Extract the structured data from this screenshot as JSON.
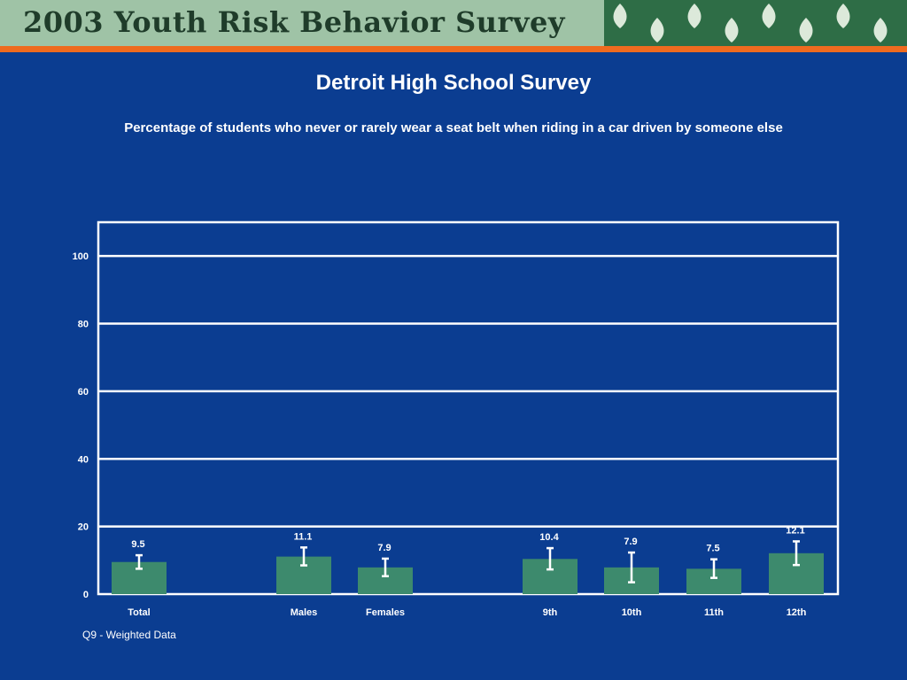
{
  "header": {
    "banner_title": "2003 Youth Risk Behavior Survey",
    "banner_color": "#9fc3a6",
    "accent_color": "#ef6b1f",
    "leaf_pattern": "leaf-pattern-icon"
  },
  "slide": {
    "title": "Detroit High School Survey",
    "footnote": "Q9 - Weighted Data",
    "background_color": "#0b3d91"
  },
  "chart_data": {
    "type": "bar",
    "title": "Percentage of students who never or rarely wear a seat belt when riding in a car driven by someone else",
    "categories": [
      "Total",
      "Males",
      "Females",
      "9th",
      "10th",
      "11th",
      "12th"
    ],
    "values": [
      9.5,
      11.1,
      7.9,
      10.4,
      7.9,
      7.5,
      12.1
    ],
    "value_labels": [
      "9.5",
      "11.1",
      "7.9",
      "10.4",
      "7.9",
      "7.5",
      "12.1"
    ],
    "error_bars": [
      [
        7.5,
        11.5
      ],
      [
        8.5,
        13.8
      ],
      [
        5.3,
        10.5
      ],
      [
        7.3,
        13.6
      ],
      [
        3.5,
        12.3
      ],
      [
        4.8,
        10.3
      ],
      [
        8.6,
        15.6
      ]
    ],
    "ylim": [
      0,
      110
    ],
    "yticks": [
      0,
      20,
      40,
      60,
      80,
      100
    ],
    "grid": true,
    "bar_color": "#3d8a6d",
    "xlabel": "",
    "ylabel": ""
  }
}
